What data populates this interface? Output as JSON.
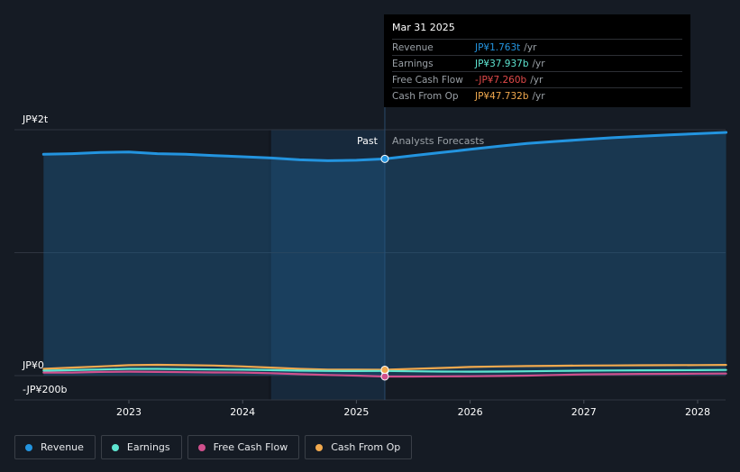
{
  "chart_data": {
    "type": "area",
    "y_tick_labels": [
      "JP¥2t",
      "JP¥0",
      "-JP¥200b"
    ],
    "x_tick_labels": [
      "2023",
      "2024",
      "2025",
      "2026",
      "2027",
      "2028"
    ],
    "ylim": [
      -200,
      2000
    ],
    "y_unit": "JP¥ billions",
    "grid": true,
    "past_label": "Past",
    "forecast_label": "Analysts Forecasts",
    "divider_x": 2025.25,
    "shaded_past_start_x": 2024.25,
    "series": [
      {
        "name": "Revenue",
        "color": "#2394df",
        "x": [
          2022.25,
          2022.5,
          2022.75,
          2023.0,
          2023.25,
          2023.5,
          2023.75,
          2024.0,
          2024.25,
          2024.5,
          2024.75,
          2025.0,
          2025.25,
          2025.5,
          2025.75,
          2026.0,
          2026.25,
          2026.5,
          2026.75,
          2027.0,
          2027.25,
          2027.5,
          2027.75,
          2028.0,
          2028.25
        ],
        "values": [
          1800,
          1805,
          1815,
          1818,
          1805,
          1800,
          1790,
          1780,
          1770,
          1755,
          1748,
          1752,
          1763,
          1790,
          1815,
          1840,
          1865,
          1888,
          1905,
          1920,
          1935,
          1947,
          1958,
          1968,
          1978
        ]
      },
      {
        "name": "Earnings",
        "color": "#5ee5d1",
        "x": [
          2022.25,
          2022.5,
          2022.75,
          2023.0,
          2023.25,
          2023.5,
          2023.75,
          2024.0,
          2024.25,
          2024.5,
          2024.75,
          2025.0,
          2025.25,
          2025.5,
          2025.75,
          2026.0,
          2026.25,
          2026.5,
          2026.75,
          2027.0,
          2027.25,
          2027.5,
          2027.75,
          2028.0,
          2028.25
        ],
        "values": [
          40,
          45,
          50,
          55,
          55,
          52,
          50,
          48,
          45,
          40,
          38,
          37,
          38,
          35,
          33,
          32,
          33,
          35,
          38,
          40,
          42,
          43,
          44,
          45,
          46
        ]
      },
      {
        "name": "Free Cash Flow",
        "color": "#d0508d",
        "x": [
          2022.25,
          2022.5,
          2022.75,
          2023.0,
          2023.25,
          2023.5,
          2023.75,
          2024.0,
          2024.25,
          2024.5,
          2024.75,
          2025.0,
          2025.25,
          2025.5,
          2025.75,
          2026.0,
          2026.25,
          2026.5,
          2026.75,
          2027.0,
          2027.25,
          2027.5,
          2027.75,
          2028.0,
          2028.25
        ],
        "values": [
          25,
          25,
          30,
          32,
          30,
          28,
          26,
          25,
          20,
          12,
          5,
          0,
          -7.26,
          -7,
          -6,
          -5,
          -3,
          0,
          5,
          10,
          12,
          14,
          15,
          16,
          17
        ]
      },
      {
        "name": "Cash From Op",
        "color": "#f1a94e",
        "x": [
          2022.25,
          2022.5,
          2022.75,
          2023.0,
          2023.25,
          2023.5,
          2023.75,
          2024.0,
          2024.25,
          2024.5,
          2024.75,
          2025.0,
          2025.25,
          2025.5,
          2025.75,
          2026.0,
          2026.25,
          2026.5,
          2026.75,
          2027.0,
          2027.25,
          2027.5,
          2027.75,
          2028.0,
          2028.25
        ],
        "values": [
          55,
          65,
          75,
          85,
          88,
          85,
          82,
          75,
          65,
          55,
          48,
          48,
          47.7,
          55,
          62,
          70,
          75,
          78,
          80,
          82,
          83,
          84,
          85,
          86,
          87
        ]
      }
    ]
  },
  "tooltip": {
    "date": "Mar 31 2025",
    "rows": [
      {
        "name": "Revenue",
        "value": "JP¥1.763t",
        "unit": "/yr",
        "color": "#2394df"
      },
      {
        "name": "Earnings",
        "value": "JP¥37.937b",
        "unit": "/yr",
        "color": "#5ee5d1"
      },
      {
        "name": "Free Cash Flow",
        "value": "-JP¥7.260b",
        "unit": "/yr",
        "color": "#e24a4a"
      },
      {
        "name": "Cash From Op",
        "value": "JP¥47.732b",
        "unit": "/yr",
        "color": "#f1a94e"
      }
    ]
  },
  "legend": [
    {
      "label": "Revenue",
      "color": "#2394df"
    },
    {
      "label": "Earnings",
      "color": "#5ee5d1"
    },
    {
      "label": "Free Cash Flow",
      "color": "#d0508d"
    },
    {
      "label": "Cash From Op",
      "color": "#f1a94e"
    }
  ]
}
